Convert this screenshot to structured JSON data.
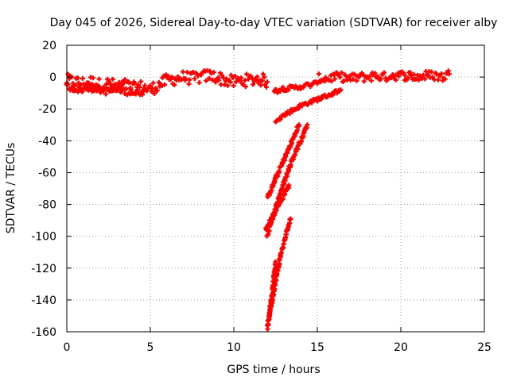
{
  "chart_data": {
    "type": "scatter",
    "title": "Day 045 of 2026, Sidereal Day-to-day VTEC variation (SDTVAR) for receiver alby",
    "xlabel": "GPS time / hours",
    "ylabel": "SDTVAR / TECUs",
    "xlim": [
      0,
      25
    ],
    "ylim": [
      -160,
      20
    ],
    "xticks": [
      0,
      5,
      10,
      15,
      20,
      25
    ],
    "yticks": [
      -160,
      -140,
      -120,
      -100,
      -80,
      -60,
      -40,
      -20,
      0,
      20
    ],
    "grid": true,
    "legend": "none",
    "marker_color": "#ff0000",
    "series": [
      {
        "segments": [
          {
            "points": [
              [
                0.0,
                -2
              ],
              [
                0.5,
                -3
              ],
              [
                1.0,
                -4
              ],
              [
                1.5,
                -3
              ],
              [
                2.0,
                -5
              ],
              [
                2.5,
                -4
              ],
              [
                3.0,
                -6
              ],
              [
                3.5,
                -5
              ],
              [
                4.0,
                -7
              ],
              [
                4.5,
                -6
              ],
              [
                5.0,
                -8
              ],
              [
                5.5,
                -5
              ],
              [
                6.0,
                -2
              ],
              [
                6.5,
                -1
              ],
              [
                7.0,
                0
              ],
              [
                7.5,
                -1
              ],
              [
                8.0,
                0
              ],
              [
                8.5,
                1
              ],
              [
                9.0,
                0
              ],
              [
                9.5,
                -2
              ],
              [
                10.0,
                -3
              ],
              [
                10.5,
                -2
              ],
              [
                11.0,
                -2
              ],
              [
                11.5,
                -1
              ],
              [
                12.0,
                -3
              ]
            ],
            "spread": 4
          },
          {
            "points": [
              [
                0.0,
                -6
              ],
              [
                0.8,
                -8
              ],
              [
                1.6,
                -7
              ],
              [
                2.4,
                -9
              ],
              [
                3.2,
                -8
              ],
              [
                4.0,
                -10
              ],
              [
                4.6,
                -9
              ]
            ],
            "spread": 2
          },
          {
            "points": [
              [
                12.4,
                -9
              ],
              [
                13.0,
                -7
              ],
              [
                13.5,
                -7
              ],
              [
                14.0,
                -6
              ],
              [
                14.5,
                -5
              ],
              [
                15.0,
                -4
              ]
            ],
            "spread": 1.5
          },
          {
            "points": [
              [
                15.0,
                -1
              ],
              [
                15.5,
                -1
              ],
              [
                16.0,
                0
              ],
              [
                16.5,
                0
              ],
              [
                17.0,
                -1
              ],
              [
                17.5,
                0
              ],
              [
                18.0,
                0
              ],
              [
                18.5,
                1
              ],
              [
                19.0,
                0
              ],
              [
                19.5,
                1
              ],
              [
                20.0,
                1
              ],
              [
                20.5,
                1
              ],
              [
                21.0,
                0
              ],
              [
                21.5,
                1
              ],
              [
                22.0,
                1
              ],
              [
                22.5,
                0
              ],
              [
                22.9,
                2
              ]
            ],
            "spread": 3
          },
          {
            "points": [
              [
                12.5,
                -27
              ],
              [
                13.0,
                -24
              ],
              [
                13.5,
                -21
              ],
              [
                14.0,
                -18
              ],
              [
                14.5,
                -16
              ],
              [
                15.0,
                -14
              ],
              [
                15.5,
                -12
              ],
              [
                16.0,
                -10
              ],
              [
                16.4,
                -8
              ]
            ],
            "spread": 1.2
          },
          {
            "points": [
              [
                12.0,
                -76
              ],
              [
                12.5,
                -64
              ],
              [
                13.0,
                -52
              ],
              [
                13.5,
                -40
              ],
              [
                13.9,
                -30
              ]
            ],
            "spread": 1.2
          },
          {
            "points": [
              [
                12.0,
                -100
              ],
              [
                12.5,
                -82
              ],
              [
                13.0,
                -66
              ],
              [
                13.5,
                -52
              ],
              [
                14.0,
                -40
              ],
              [
                14.4,
                -30
              ]
            ],
            "spread": 1.2
          },
          {
            "points": [
              [
                11.9,
                -96
              ],
              [
                12.3,
                -88
              ],
              [
                12.8,
                -78
              ],
              [
                13.3,
                -68
              ]
            ],
            "spread": 1.2
          },
          {
            "points": [
              [
                12.0,
                -158
              ],
              [
                12.2,
                -145
              ],
              [
                12.5,
                -128
              ],
              [
                12.8,
                -112
              ],
              [
                13.1,
                -100
              ],
              [
                13.4,
                -89
              ]
            ],
            "spread": 1.2
          },
          {
            "points": [
              [
                12.1,
                -150
              ],
              [
                12.3,
                -136
              ],
              [
                12.5,
                -116
              ]
            ],
            "spread": 1.0
          }
        ]
      }
    ]
  }
}
